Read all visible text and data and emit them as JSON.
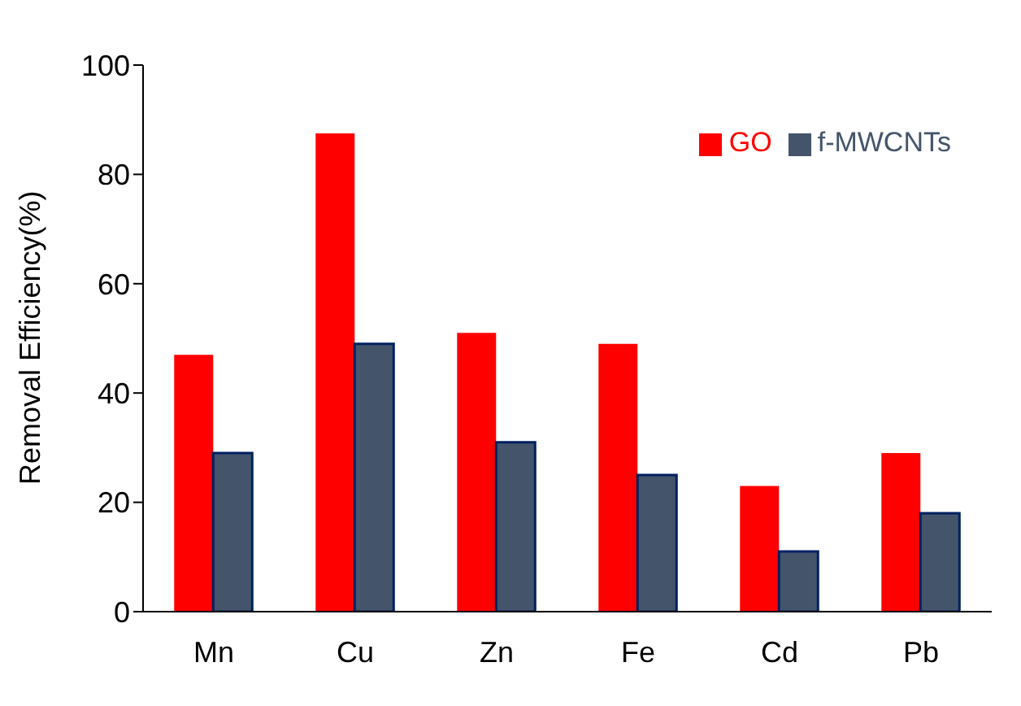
{
  "chart_data": {
    "type": "bar",
    "ylabel": "Removal Efficiency(%)",
    "categories": [
      "Mn",
      "Cu",
      "Zn",
      "Fe",
      "Cd",
      "Pb"
    ],
    "series": [
      {
        "name": "GO",
        "color": "#ff0000",
        "values": [
          47,
          87.5,
          51,
          49,
          23,
          29
        ]
      },
      {
        "name": "f-MWCNTs",
        "color": "#44546a",
        "values": [
          29,
          49,
          31,
          25,
          11,
          18
        ]
      }
    ],
    "ylim": [
      0,
      100
    ],
    "yticks": [
      0,
      20,
      40,
      60,
      80,
      100
    ],
    "grid": false,
    "legend": "top right"
  }
}
